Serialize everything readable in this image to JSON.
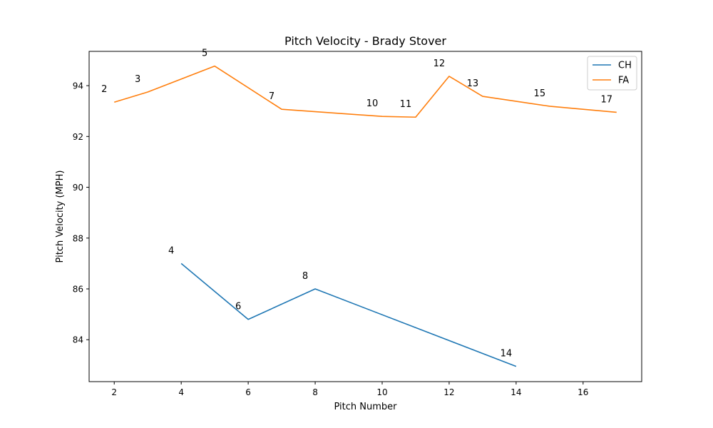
{
  "chart_data": {
    "type": "line",
    "title": "Pitch Velocity - Brady Stover",
    "xlabel": "Pitch Number",
    "ylabel": "Pitch Velocity (MPH)",
    "xlim": [
      1.25,
      17.75
    ],
    "ylim": [
      82.35,
      95.35
    ],
    "xticks": [
      2,
      4,
      6,
      8,
      10,
      12,
      14,
      16
    ],
    "yticks": [
      84,
      86,
      88,
      90,
      92,
      94
    ],
    "grid": false,
    "legend": "top-right",
    "series": [
      {
        "name": "CH",
        "color": "#1f77b4",
        "x": [
          4,
          6,
          8,
          14
        ],
        "y": [
          87.0,
          84.8,
          86.0,
          82.95
        ],
        "point_labels": [
          "4",
          "6",
          "8",
          "14"
        ]
      },
      {
        "name": "FA",
        "color": "#ff7f0e",
        "x": [
          2,
          3,
          5,
          7,
          10,
          11,
          12,
          13,
          15,
          17
        ],
        "y": [
          93.35,
          93.75,
          94.77,
          93.07,
          92.79,
          92.76,
          94.37,
          93.58,
          93.19,
          92.95
        ],
        "point_labels": [
          "2",
          "3",
          "5",
          "7",
          "10",
          "11",
          "12",
          "13",
          "15",
          "17"
        ]
      }
    ]
  }
}
